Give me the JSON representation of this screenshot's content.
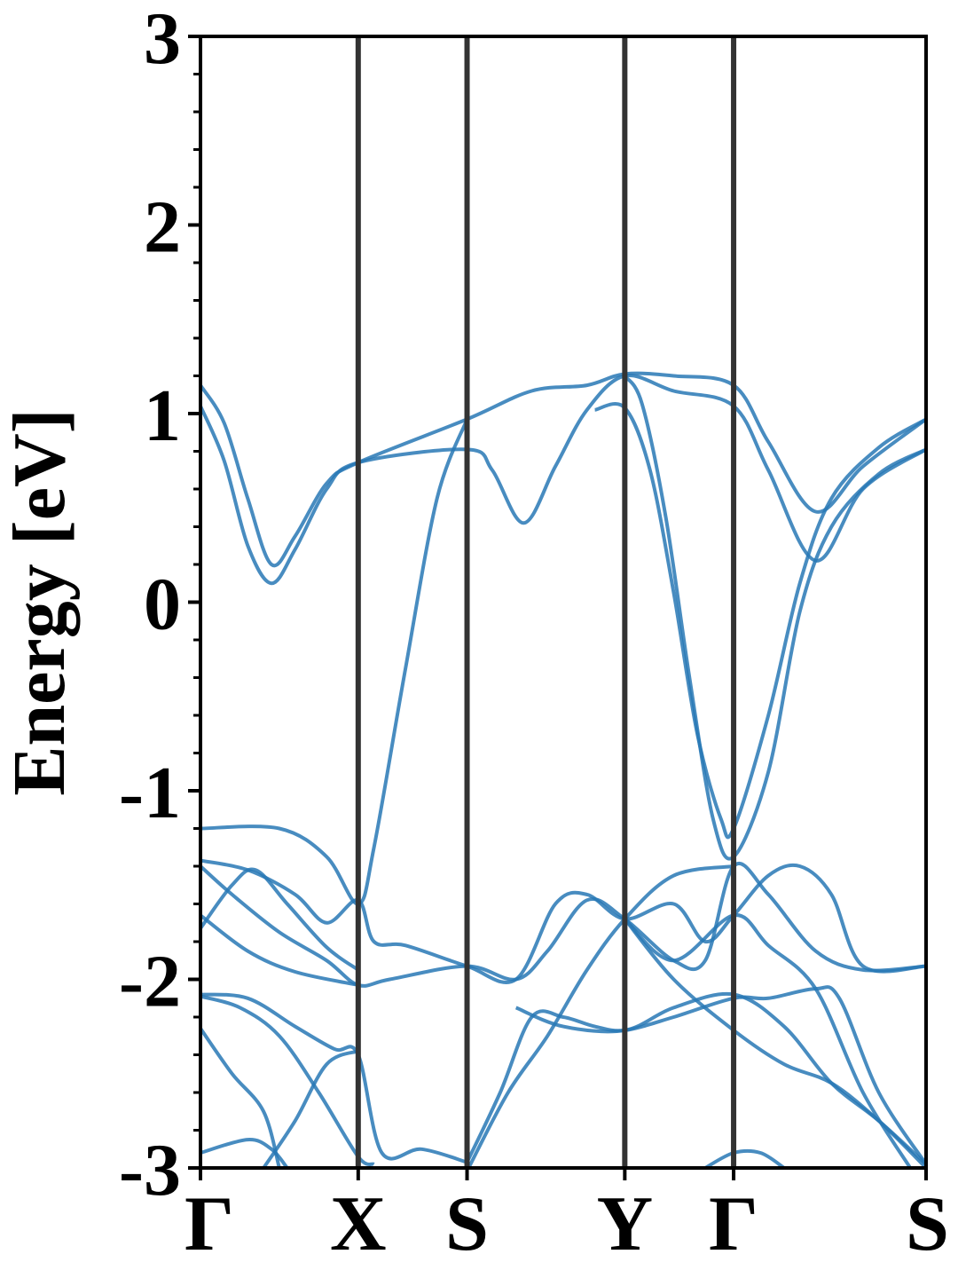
{
  "chart_data": {
    "type": "line",
    "title": "",
    "xlabel": "",
    "ylabel": "Energy [eV]",
    "ylim": [
      -3,
      3
    ],
    "yticks": [
      "-3",
      "-2",
      "-1",
      "0",
      "1",
      "2",
      "3"
    ],
    "high_symmetry_points": [
      {
        "label": "Γ",
        "k": 0.0
      },
      {
        "label": "X",
        "k": 1.0
      },
      {
        "label": "S",
        "k": 1.69
      },
      {
        "label": "Y",
        "k": 2.69
      },
      {
        "label": "Γ",
        "k": 3.38
      },
      {
        "label": "S",
        "k": 4.6
      }
    ],
    "line_color": "#2878b5",
    "vline_color": "#333333",
    "series": [
      {
        "values": [
          [
            0,
            1.15
          ],
          [
            0.15,
            0.95
          ],
          [
            0.3,
            0.55
          ],
          [
            0.45,
            0.2
          ],
          [
            0.6,
            0.35
          ],
          [
            0.8,
            0.63
          ],
          [
            1.0,
            0.74
          ],
          [
            1.69,
            0.97
          ],
          [
            2.1,
            1.12
          ],
          [
            2.45,
            1.15
          ],
          [
            2.69,
            1.21
          ],
          [
            3.0,
            1.2
          ],
          [
            3.38,
            1.15
          ],
          [
            3.6,
            0.85
          ],
          [
            3.9,
            0.48
          ],
          [
            4.2,
            0.72
          ],
          [
            4.6,
            0.97
          ]
        ]
      },
      {
        "values": [
          [
            0,
            1.04
          ],
          [
            0.15,
            0.75
          ],
          [
            0.3,
            0.3
          ],
          [
            0.45,
            0.1
          ],
          [
            0.6,
            0.28
          ],
          [
            0.8,
            0.6
          ],
          [
            1.0,
            0.74
          ],
          [
            1.69,
            0.81
          ],
          [
            1.85,
            0.7
          ],
          [
            2.05,
            0.42
          ],
          [
            2.25,
            0.72
          ],
          [
            2.45,
            1.02
          ],
          [
            2.69,
            1.2
          ],
          [
            3.0,
            1.12
          ],
          [
            3.38,
            1.04
          ],
          [
            3.6,
            0.7
          ],
          [
            3.9,
            0.22
          ],
          [
            4.2,
            0.6
          ],
          [
            4.6,
            0.81
          ]
        ]
      },
      {
        "values": [
          [
            0,
            -1.2
          ],
          [
            0.5,
            -1.2
          ],
          [
            0.8,
            -1.35
          ],
          [
            1.0,
            -1.6
          ],
          [
            1.1,
            -1.3
          ],
          [
            1.3,
            -0.35
          ],
          [
            1.5,
            0.55
          ],
          [
            1.69,
            0.97
          ]
        ]
      },
      {
        "values": [
          [
            2.5,
            1.02
          ],
          [
            2.69,
            1.03
          ],
          [
            2.85,
            0.7
          ],
          [
            3.0,
            0.05
          ],
          [
            3.15,
            -0.7
          ],
          [
            3.3,
            -1.15
          ],
          [
            3.38,
            -1.2
          ],
          [
            3.6,
            -0.6
          ],
          [
            3.8,
            0.1
          ],
          [
            4.0,
            0.55
          ],
          [
            4.3,
            0.82
          ],
          [
            4.6,
            0.97
          ]
        ]
      },
      {
        "values": [
          [
            2.69,
            1.2
          ],
          [
            2.8,
            1.05
          ],
          [
            2.95,
            0.45
          ],
          [
            3.1,
            -0.4
          ],
          [
            3.25,
            -1.15
          ],
          [
            3.38,
            -1.35
          ],
          [
            3.6,
            -0.9
          ],
          [
            3.8,
            -0.05
          ],
          [
            4.0,
            0.4
          ],
          [
            4.3,
            0.68
          ],
          [
            4.6,
            0.81
          ]
        ]
      },
      {
        "values": [
          [
            0,
            -1.37
          ],
          [
            0.3,
            -1.42
          ],
          [
            0.6,
            -1.55
          ],
          [
            0.8,
            -1.7
          ],
          [
            1.0,
            -1.58
          ],
          [
            1.1,
            -1.8
          ],
          [
            1.3,
            -1.82
          ],
          [
            1.69,
            -1.93
          ],
          [
            2.0,
            -2.0
          ],
          [
            2.25,
            -1.6
          ],
          [
            2.45,
            -1.55
          ],
          [
            2.69,
            -1.68
          ],
          [
            3.0,
            -1.6
          ],
          [
            3.2,
            -1.8
          ],
          [
            3.38,
            -1.66
          ],
          [
            3.6,
            -1.45
          ],
          [
            3.8,
            -1.4
          ],
          [
            4.0,
            -1.55
          ],
          [
            4.2,
            -1.93
          ],
          [
            4.6,
            -1.93
          ]
        ]
      },
      {
        "values": [
          [
            0,
            -1.4
          ],
          [
            0.2,
            -1.55
          ],
          [
            0.5,
            -1.75
          ],
          [
            0.8,
            -1.9
          ],
          [
            1.0,
            -2.03
          ],
          [
            1.2,
            -2.0
          ],
          [
            1.69,
            -1.93
          ],
          [
            2.0,
            -2.0
          ],
          [
            2.2,
            -1.85
          ],
          [
            2.45,
            -1.58
          ],
          [
            2.69,
            -1.68
          ],
          [
            3.0,
            -1.9
          ],
          [
            3.2,
            -1.9
          ],
          [
            3.38,
            -1.4
          ],
          [
            3.6,
            -1.55
          ],
          [
            3.9,
            -1.85
          ],
          [
            4.2,
            -1.95
          ],
          [
            4.6,
            -1.93
          ]
        ]
      },
      {
        "values": [
          [
            0,
            -1.73
          ],
          [
            0.2,
            -1.5
          ],
          [
            0.35,
            -1.42
          ],
          [
            0.55,
            -1.6
          ],
          [
            0.8,
            -1.83
          ],
          [
            1.0,
            -1.95
          ]
        ]
      },
      {
        "values": [
          [
            0,
            -1.66
          ],
          [
            0.3,
            -1.85
          ],
          [
            0.6,
            -1.96
          ],
          [
            1.0,
            -2.03
          ]
        ]
      },
      {
        "values": [
          [
            0,
            -2.08
          ],
          [
            0.3,
            -2.1
          ],
          [
            0.6,
            -2.25
          ],
          [
            0.85,
            -2.37
          ],
          [
            1.0,
            -2.4
          ],
          [
            1.15,
            -2.92
          ],
          [
            1.4,
            -2.9
          ],
          [
            1.69,
            -2.97
          ]
        ]
      },
      {
        "values": [
          [
            0,
            -2.09
          ],
          [
            0.25,
            -2.15
          ],
          [
            0.5,
            -2.3
          ],
          [
            0.75,
            -2.6
          ],
          [
            1.0,
            -2.94
          ],
          [
            1.1,
            -2.98
          ]
        ]
      },
      {
        "values": [
          [
            0,
            -2.26
          ],
          [
            0.2,
            -2.5
          ],
          [
            0.4,
            -2.7
          ],
          [
            0.5,
            -3.0
          ]
        ]
      },
      {
        "values": [
          [
            0,
            -2.92
          ],
          [
            0.3,
            -2.85
          ],
          [
            0.45,
            -2.9
          ],
          [
            0.55,
            -3.0
          ]
        ]
      },
      {
        "values": [
          [
            0.4,
            -3.0
          ],
          [
            0.6,
            -2.75
          ],
          [
            0.8,
            -2.45
          ],
          [
            1.0,
            -2.38
          ]
        ]
      },
      {
        "values": [
          [
            1.7,
            -3.0
          ],
          [
            1.95,
            -2.6
          ],
          [
            2.2,
            -2.3
          ],
          [
            2.45,
            -1.95
          ],
          [
            2.69,
            -1.68
          ],
          [
            3.0,
            -1.45
          ],
          [
            3.38,
            -1.4
          ]
        ]
      },
      {
        "values": [
          [
            1.69,
            -2.97
          ],
          [
            1.9,
            -2.6
          ],
          [
            2.1,
            -2.2
          ],
          [
            2.3,
            -2.2
          ],
          [
            2.5,
            -2.25
          ],
          [
            2.69,
            -2.27
          ],
          [
            3.0,
            -2.2
          ],
          [
            3.38,
            -2.1
          ],
          [
            3.6,
            -2.1
          ],
          [
            3.9,
            -2.05
          ],
          [
            4.05,
            -2.1
          ],
          [
            4.3,
            -2.6
          ],
          [
            4.6,
            -2.98
          ]
        ]
      },
      {
        "values": [
          [
            2.0,
            -2.15
          ],
          [
            2.3,
            -2.25
          ],
          [
            2.69,
            -2.27
          ],
          [
            3.0,
            -2.15
          ],
          [
            3.38,
            -2.08
          ],
          [
            3.7,
            -2.25
          ],
          [
            4.0,
            -2.55
          ],
          [
            4.3,
            -2.75
          ],
          [
            4.6,
            -2.98
          ]
        ]
      },
      {
        "values": [
          [
            2.69,
            -1.68
          ],
          [
            3.0,
            -2.0
          ],
          [
            3.38,
            -2.27
          ],
          [
            3.7,
            -2.45
          ],
          [
            4.0,
            -2.55
          ],
          [
            4.3,
            -2.75
          ],
          [
            4.6,
            -3.0
          ]
        ]
      },
      {
        "values": [
          [
            2.69,
            -1.68
          ],
          [
            3.0,
            -1.9
          ],
          [
            3.38,
            -1.66
          ],
          [
            3.6,
            -1.82
          ],
          [
            3.9,
            -2.05
          ],
          [
            4.2,
            -2.6
          ],
          [
            4.5,
            -3.0
          ]
        ]
      },
      {
        "values": [
          [
            3.2,
            -3.0
          ],
          [
            3.38,
            -2.92
          ],
          [
            3.55,
            -2.92
          ],
          [
            3.7,
            -3.0
          ]
        ]
      }
    ]
  }
}
